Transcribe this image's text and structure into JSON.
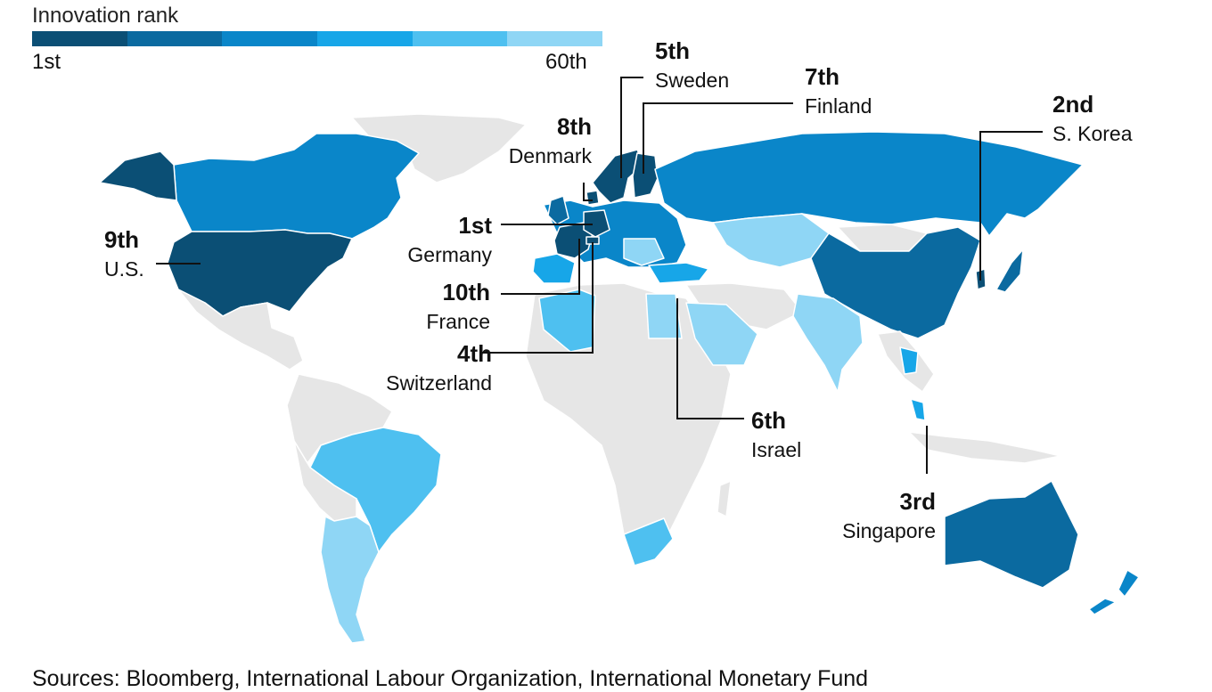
{
  "legend": {
    "title": "Innovation rank",
    "low_label": "1st",
    "high_label": "60th",
    "colors": [
      "#0b4f75",
      "#0b6aa0",
      "#0a86c9",
      "#17a6e8",
      "#4ec0f0",
      "#8fd6f5"
    ]
  },
  "colors": {
    "no_data": "#e6e6e6",
    "border": "#ffffff",
    "leader_line": "#111111",
    "top_rank": "#0b4f75",
    "mid_rank": "#0a86c9",
    "lower_rank": "#4ec0f0",
    "lowest_rank": "#8fd6f5"
  },
  "callouts": [
    {
      "id": "sweden",
      "rank": "5th",
      "country": "Sweden"
    },
    {
      "id": "finland",
      "rank": "7th",
      "country": "Finland"
    },
    {
      "id": "denmark",
      "rank": "8th",
      "country": "Denmark"
    },
    {
      "id": "korea",
      "rank": "2nd",
      "country": "S. Korea"
    },
    {
      "id": "germany",
      "rank": "1st",
      "country": "Germany"
    },
    {
      "id": "us",
      "rank": "9th",
      "country": "U.S."
    },
    {
      "id": "france",
      "rank": "10th",
      "country": "France"
    },
    {
      "id": "switzerland",
      "rank": "4th",
      "country": "Switzerland"
    },
    {
      "id": "israel",
      "rank": "6th",
      "country": "Israel"
    },
    {
      "id": "singapore",
      "rank": "3rd",
      "country": "Singapore"
    }
  ],
  "source": "Sources: Bloomberg, International Labour Organization, International Monetary Fund"
}
